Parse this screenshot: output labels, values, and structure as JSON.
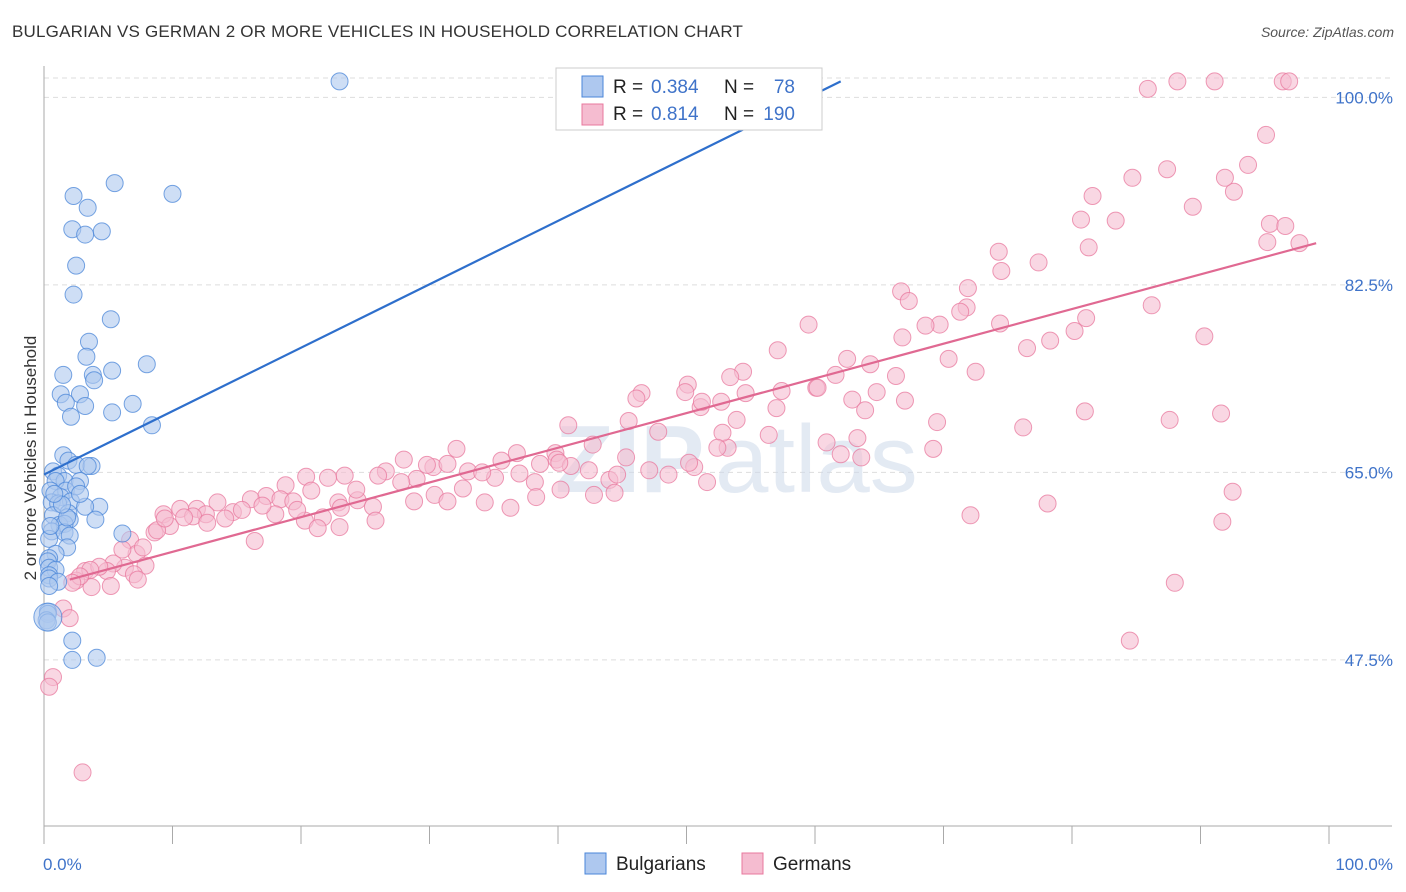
{
  "title": "BULGARIAN VS GERMAN 2 OR MORE VEHICLES IN HOUSEHOLD CORRELATION CHART",
  "source": "Source: ZipAtlas.com",
  "watermark": {
    "zip": "ZIP",
    "atlas": "atlas"
  },
  "colors": {
    "blue": "#4a86d8",
    "blue_fill": "#aec8ef",
    "blue_line": "#2e6fcc",
    "pink": "#e8789e",
    "pink_fill": "#f5bcd0",
    "pink_line": "#e06992",
    "axis_label": "#3f73c9",
    "grid": "#dddddd"
  },
  "legend": {
    "rows": [
      {
        "r_label": "R =",
        "r_value": "0.384",
        "n_label": "N =",
        "n_value": "78",
        "series": "Bulgarians"
      },
      {
        "r_label": "R =",
        "r_value": "0.814",
        "n_label": "N =",
        "n_value": "190",
        "series": "Germans"
      }
    ]
  },
  "chart_data": {
    "type": "scatter",
    "title": "BULGARIAN VS GERMAN 2 OR MORE VEHICLES IN HOUSEHOLD CORRELATION CHART",
    "xlabel": "",
    "ylabel": "2 or more Vehicles in Household",
    "xlim": [
      0,
      100
    ],
    "ylim": [
      32,
      102
    ],
    "x_tick_labels": [
      "0.0%",
      "100.0%"
    ],
    "y_ticks": [
      47.5,
      65.0,
      82.5,
      100.0
    ],
    "y_tick_labels": [
      "47.5%",
      "65.0%",
      "82.5%",
      "100.0%"
    ],
    "grid": true,
    "legend_position": "top-center",
    "series": [
      {
        "name": "Bulgarians",
        "r": 0.384,
        "n": 78,
        "trend": {
          "x": [
            0,
            62
          ],
          "y": [
            64.8,
            101.5
          ]
        },
        "points": [
          [
            23,
            101.5
          ],
          [
            5.5,
            92
          ],
          [
            10,
            91
          ],
          [
            2.3,
            90.8
          ],
          [
            3.4,
            89.7
          ],
          [
            2.2,
            87.7
          ],
          [
            3.2,
            87.2
          ],
          [
            4.5,
            87.5
          ],
          [
            2.5,
            84.3
          ],
          [
            2.3,
            81.6
          ],
          [
            5.2,
            79.3
          ],
          [
            3.5,
            77.2
          ],
          [
            3.3,
            75.8
          ],
          [
            8,
            75.1
          ],
          [
            3.8,
            74.1
          ],
          [
            5.3,
            74.5
          ],
          [
            1.5,
            74.1
          ],
          [
            3.9,
            73.6
          ],
          [
            2.8,
            72.3
          ],
          [
            1.3,
            72.3
          ],
          [
            1.7,
            71.5
          ],
          [
            3.2,
            71.2
          ],
          [
            6.9,
            71.4
          ],
          [
            5.3,
            70.6
          ],
          [
            2.1,
            70.2
          ],
          [
            8.4,
            69.4
          ],
          [
            1.5,
            66.6
          ],
          [
            1.9,
            66.1
          ],
          [
            2.5,
            65.7
          ],
          [
            3.7,
            65.6
          ],
          [
            3.4,
            65.6
          ],
          [
            0.7,
            65.1
          ],
          [
            1.1,
            64.7
          ],
          [
            1.6,
            64.2
          ],
          [
            2.8,
            64.2
          ],
          [
            0.9,
            64.2
          ],
          [
            0.5,
            63.3
          ],
          [
            1.7,
            63.3
          ],
          [
            1.3,
            62.7
          ],
          [
            0.6,
            62.2
          ],
          [
            2.1,
            62.3
          ],
          [
            1.1,
            62.1
          ],
          [
            4.3,
            61.8
          ],
          [
            3.2,
            61.8
          ],
          [
            1.9,
            61.2
          ],
          [
            0.7,
            61.0
          ],
          [
            2.0,
            60.6
          ],
          [
            4.0,
            60.6
          ],
          [
            1.2,
            60.1
          ],
          [
            1.6,
            60.2
          ],
          [
            0.6,
            59.5
          ],
          [
            1.6,
            59.4
          ],
          [
            6.1,
            59.3
          ],
          [
            2.0,
            59.1
          ],
          [
            0.4,
            58.8
          ],
          [
            1.8,
            58.0
          ],
          [
            0.9,
            57.4
          ],
          [
            0.4,
            57.0
          ],
          [
            0.3,
            56.7
          ],
          [
            0.4,
            56.1
          ],
          [
            0.9,
            55.9
          ],
          [
            0.4,
            55.4
          ],
          [
            0.4,
            55.1
          ],
          [
            1.1,
            54.8
          ],
          [
            0.4,
            54.4
          ],
          [
            0.3,
            52.0
          ],
          [
            0.3,
            51.8
          ],
          [
            0.2,
            51.2
          ],
          [
            0.3,
            51.0
          ],
          [
            2.2,
            49.3
          ],
          [
            2.2,
            47.5
          ],
          [
            4.1,
            47.7
          ],
          [
            1.8,
            60.8
          ],
          [
            2.5,
            63.7
          ],
          [
            1.4,
            62.0
          ],
          [
            0.8,
            63.0
          ],
          [
            2.8,
            63.0
          ],
          [
            0.5,
            60.0
          ]
        ]
      },
      {
        "name": "Germans",
        "r": 0.814,
        "n": 190,
        "trend": {
          "x": [
            2,
            99
          ],
          "y": [
            55.0,
            86.4
          ]
        },
        "points": [
          [
            88.2,
            101.5
          ],
          [
            91.1,
            101.5
          ],
          [
            96.4,
            101.5
          ],
          [
            96.9,
            101.5
          ],
          [
            85.9,
            100.8
          ],
          [
            95.1,
            96.5
          ],
          [
            93.7,
            93.7
          ],
          [
            92.6,
            91.2
          ],
          [
            87.4,
            93.3
          ],
          [
            84.7,
            92.5
          ],
          [
            91.9,
            92.5
          ],
          [
            81.6,
            90.8
          ],
          [
            89.4,
            89.8
          ],
          [
            80.7,
            88.6
          ],
          [
            83.4,
            88.5
          ],
          [
            95.4,
            88.2
          ],
          [
            96.6,
            88.0
          ],
          [
            95.2,
            86.5
          ],
          [
            81.3,
            86.0
          ],
          [
            77.4,
            84.6
          ],
          [
            74.3,
            85.6
          ],
          [
            97.7,
            86.4
          ],
          [
            74.5,
            83.8
          ],
          [
            71.9,
            82.2
          ],
          [
            71.8,
            80.4
          ],
          [
            66.7,
            81.9
          ],
          [
            67.3,
            81.0
          ],
          [
            71.3,
            80.0
          ],
          [
            69.7,
            78.8
          ],
          [
            68.6,
            78.7
          ],
          [
            74.4,
            78.9
          ],
          [
            81.1,
            79.4
          ],
          [
            80.2,
            78.2
          ],
          [
            78.3,
            77.3
          ],
          [
            90.3,
            77.7
          ],
          [
            86.2,
            80.6
          ],
          [
            59.5,
            78.8
          ],
          [
            66.8,
            77.6
          ],
          [
            57.1,
            76.4
          ],
          [
            64.3,
            75.1
          ],
          [
            70.4,
            75.6
          ],
          [
            76.5,
            76.6
          ],
          [
            62.5,
            75.6
          ],
          [
            66.3,
            74.0
          ],
          [
            54.4,
            74.4
          ],
          [
            61.6,
            74.1
          ],
          [
            57.4,
            72.6
          ],
          [
            60.1,
            72.9
          ],
          [
            53.4,
            73.9
          ],
          [
            50.1,
            73.2
          ],
          [
            54.6,
            72.4
          ],
          [
            51.1,
            71.1
          ],
          [
            49.9,
            72.5
          ],
          [
            46.5,
            72.4
          ],
          [
            51.2,
            71.6
          ],
          [
            60.2,
            72.9
          ],
          [
            46.1,
            71.9
          ],
          [
            52.7,
            71.6
          ],
          [
            57.0,
            71.0
          ],
          [
            67.0,
            71.7
          ],
          [
            72.5,
            74.4
          ],
          [
            64.8,
            72.5
          ],
          [
            62.9,
            71.8
          ],
          [
            63.9,
            70.8
          ],
          [
            69.5,
            69.7
          ],
          [
            53.9,
            69.9
          ],
          [
            45.5,
            69.8
          ],
          [
            40.8,
            69.4
          ],
          [
            47.8,
            68.8
          ],
          [
            56.4,
            68.5
          ],
          [
            60.9,
            67.8
          ],
          [
            63.3,
            68.2
          ],
          [
            62.0,
            66.7
          ],
          [
            53.2,
            67.3
          ],
          [
            42.7,
            67.6
          ],
          [
            39.8,
            66.8
          ],
          [
            38.6,
            65.8
          ],
          [
            39.9,
            66.2
          ],
          [
            42.4,
            65.2
          ],
          [
            47.1,
            65.2
          ],
          [
            48.6,
            64.8
          ],
          [
            45.3,
            66.4
          ],
          [
            50.6,
            65.5
          ],
          [
            51.6,
            64.1
          ],
          [
            44.0,
            64.3
          ],
          [
            41.0,
            65.6
          ],
          [
            38.2,
            64.1
          ],
          [
            35.1,
            64.5
          ],
          [
            35.6,
            66.1
          ],
          [
            37.0,
            64.9
          ],
          [
            30.3,
            65.5
          ],
          [
            31.4,
            65.8
          ],
          [
            33.0,
            65.1
          ],
          [
            34.1,
            65.0
          ],
          [
            32.6,
            63.5
          ],
          [
            29.0,
            64.4
          ],
          [
            27.8,
            64.1
          ],
          [
            26.6,
            65.1
          ],
          [
            23.4,
            64.7
          ],
          [
            22.1,
            64.5
          ],
          [
            20.4,
            64.6
          ],
          [
            20.8,
            63.3
          ],
          [
            18.8,
            63.8
          ],
          [
            17.3,
            62.8
          ],
          [
            16.1,
            62.5
          ],
          [
            14.7,
            61.3
          ],
          [
            13.5,
            62.2
          ],
          [
            11.9,
            61.6
          ],
          [
            10.6,
            61.6
          ],
          [
            9.3,
            61.1
          ],
          [
            12.6,
            61.1
          ],
          [
            15.4,
            61.5
          ],
          [
            18.4,
            62.5
          ],
          [
            19.4,
            62.3
          ],
          [
            22.9,
            62.2
          ],
          [
            24.4,
            62.4
          ],
          [
            25.6,
            61.8
          ],
          [
            28.8,
            62.3
          ],
          [
            30.4,
            62.9
          ],
          [
            31.4,
            62.3
          ],
          [
            34.3,
            62.2
          ],
          [
            36.3,
            61.7
          ],
          [
            38.3,
            62.7
          ],
          [
            40.2,
            63.4
          ],
          [
            42.8,
            62.9
          ],
          [
            44.4,
            63.1
          ],
          [
            25.8,
            60.5
          ],
          [
            23.0,
            59.9
          ],
          [
            21.7,
            60.8
          ],
          [
            20.3,
            60.5
          ],
          [
            19.7,
            61.5
          ],
          [
            18.0,
            61.1
          ],
          [
            17.0,
            61.9
          ],
          [
            14.1,
            60.7
          ],
          [
            11.6,
            60.9
          ],
          [
            9.8,
            60.0
          ],
          [
            8.6,
            59.4
          ],
          [
            8.8,
            59.6
          ],
          [
            6.7,
            58.7
          ],
          [
            7.2,
            57.4
          ],
          [
            7.9,
            56.3
          ],
          [
            6.3,
            56.1
          ],
          [
            5.4,
            56.5
          ],
          [
            4.9,
            55.8
          ],
          [
            7.0,
            55.5
          ],
          [
            3.2,
            55.8
          ],
          [
            2.5,
            54.9
          ],
          [
            3.7,
            54.3
          ],
          [
            5.2,
            54.4
          ],
          [
            7.3,
            55.0
          ],
          [
            1.5,
            52.3
          ],
          [
            2.0,
            51.4
          ],
          [
            0.7,
            45.9
          ],
          [
            0.4,
            45.0
          ],
          [
            3.0,
            37.0
          ],
          [
            72.1,
            61.0
          ],
          [
            78.1,
            62.1
          ],
          [
            92.5,
            63.2
          ],
          [
            91.7,
            60.4
          ],
          [
            88.0,
            54.7
          ],
          [
            84.5,
            49.3
          ],
          [
            81.0,
            70.7
          ],
          [
            87.6,
            69.9
          ],
          [
            91.6,
            70.5
          ],
          [
            76.2,
            69.2
          ],
          [
            69.2,
            67.2
          ],
          [
            63.6,
            66.4
          ],
          [
            52.8,
            68.7
          ],
          [
            52.4,
            67.3
          ],
          [
            50.2,
            65.9
          ],
          [
            44.6,
            64.8
          ],
          [
            40.1,
            65.9
          ],
          [
            36.8,
            66.8
          ],
          [
            32.1,
            67.2
          ],
          [
            29.8,
            65.7
          ],
          [
            28.0,
            66.2
          ],
          [
            26.0,
            64.7
          ],
          [
            24.3,
            63.4
          ],
          [
            23.1,
            61.7
          ],
          [
            21.3,
            59.8
          ],
          [
            16.4,
            58.6
          ],
          [
            12.7,
            60.3
          ],
          [
            10.9,
            60.8
          ],
          [
            9.4,
            60.7
          ],
          [
            7.7,
            58.0
          ],
          [
            6.1,
            57.8
          ],
          [
            4.3,
            56.2
          ],
          [
            3.6,
            55.9
          ],
          [
            2.8,
            55.3
          ],
          [
            2.2,
            54.7
          ]
        ]
      }
    ],
    "bottom_legend": [
      "Bulgarians",
      "Germans"
    ]
  }
}
